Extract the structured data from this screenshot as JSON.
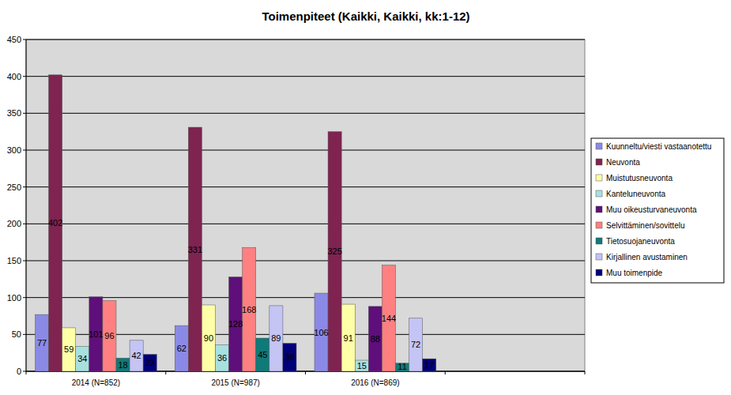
{
  "chart_data": {
    "type": "bar",
    "title": "Toimenpiteet (Kaikki, Kaikki, kk:1-12)",
    "categories": [
      "2014 (N=852)",
      "2015 (N=987)",
      "2016 (N=869)",
      null
    ],
    "series": [
      {
        "name": "Kuunneltu/viesti vastaanotettu",
        "color": "#8a8ae6",
        "values": [
          77,
          62,
          106,
          null
        ]
      },
      {
        "name": "Neuvonta",
        "color": "#7f2350",
        "values": [
          402,
          331,
          325,
          null
        ]
      },
      {
        "name": "Muistutusneuvonta",
        "color": "#ffffa8",
        "values": [
          59,
          90,
          91,
          null
        ]
      },
      {
        "name": "Kanteluneuvonta",
        "color": "#a8e0e0",
        "values": [
          34,
          36,
          15,
          null
        ]
      },
      {
        "name": "Muu oikeusturvaneuvonta",
        "color": "#5e0f7a",
        "values": [
          101,
          128,
          88,
          null
        ]
      },
      {
        "name": "Selvittäminen/sovittelu",
        "color": "#ff8080",
        "values": [
          96,
          168,
          144,
          null
        ]
      },
      {
        "name": "Tietosuojaneuvonta",
        "color": "#0f7a78",
        "values": [
          18,
          45,
          11,
          null
        ]
      },
      {
        "name": "Kirjallinen avustaminen",
        "color": "#c4c4f5",
        "values": [
          42,
          89,
          72,
          null
        ]
      },
      {
        "name": "Muu toimenpide",
        "color": "#00007a",
        "values": [
          23,
          38,
          17,
          null
        ]
      }
    ],
    "ylim": [
      0,
      450
    ],
    "yticks": [
      0,
      50,
      100,
      150,
      200,
      250,
      300,
      350,
      400,
      450
    ],
    "grid": true,
    "legend": "right",
    "data_labels": true
  }
}
